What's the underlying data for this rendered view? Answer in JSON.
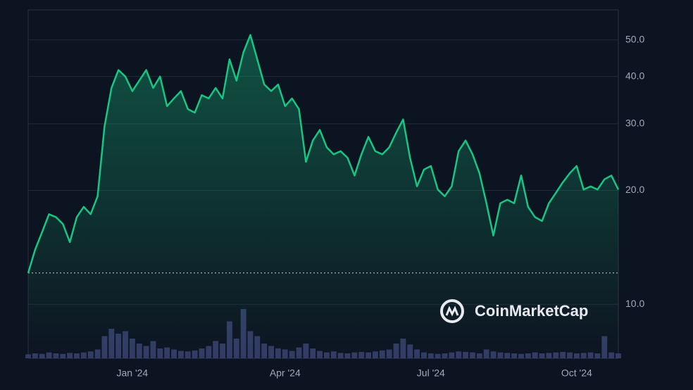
{
  "chart_data": {
    "type": "line",
    "categories": [
      null,
      null,
      null,
      null,
      null,
      null,
      null,
      null,
      null,
      null,
      null,
      null,
      null,
      null,
      null,
      "Jan '24",
      null,
      null,
      null,
      null,
      null,
      null,
      null,
      null,
      null,
      null,
      null,
      null,
      null,
      null,
      null,
      null,
      null,
      null,
      null,
      null,
      null,
      "Apr '24",
      null,
      null,
      null,
      null,
      null,
      null,
      null,
      null,
      null,
      null,
      null,
      null,
      null,
      null,
      null,
      null,
      null,
      null,
      null,
      null,
      "Jul '24",
      null,
      null,
      null,
      null,
      null,
      null,
      null,
      null,
      null,
      null,
      null,
      null,
      null,
      null,
      null,
      null,
      null,
      null,
      null,
      null,
      "Oct '24",
      null,
      null,
      null,
      null,
      null,
      null
    ],
    "values": [
      12.1,
      13.95,
      15.5,
      17.3,
      17.0,
      16.3,
      14.6,
      17.0,
      18.1,
      17.3,
      19.3,
      29.5,
      37.3,
      41.6,
      40,
      36.6,
      39,
      41.6,
      37.3,
      40,
      33.4,
      35,
      36.6,
      32.8,
      32.1,
      35.7,
      35,
      37.3,
      35,
      44.4,
      39,
      46.3,
      51.5,
      44.4,
      38.1,
      36.6,
      38.1,
      33.4,
      35,
      32.8,
      23.8,
      27.1,
      28.9,
      26,
      24.9,
      25.4,
      24.4,
      21.9,
      24.9,
      27.7,
      25.4,
      24.9,
      26,
      28.4,
      30.8,
      24.4,
      20.5,
      22.7,
      23.2,
      20.1,
      19.3,
      20.5,
      25.4,
      27.1,
      24.9,
      22.2,
      18.5,
      15.2,
      18.5,
      18.9,
      18.5,
      21.9,
      18.1,
      17,
      16.6,
      18.5,
      19.7,
      21,
      22.2,
      23.2,
      20.1,
      20.5,
      20.1,
      21.4,
      21.9,
      20.1
    ],
    "color": "#16c784",
    "volume": {
      "color": "#3b4270",
      "ylim": [
        0,
        100
      ],
      "values": [
        8,
        10,
        9,
        12,
        10,
        9,
        11,
        10,
        12,
        14,
        18,
        45,
        60,
        50,
        55,
        40,
        30,
        25,
        35,
        20,
        22,
        18,
        15,
        14,
        16,
        20,
        25,
        35,
        30,
        75,
        40,
        100,
        55,
        45,
        30,
        25,
        20,
        18,
        15,
        22,
        30,
        20,
        15,
        12,
        14,
        11,
        10,
        12,
        13,
        12,
        14,
        16,
        18,
        30,
        40,
        28,
        18,
        12,
        10,
        9,
        10,
        12,
        14,
        13,
        12,
        10,
        18,
        14,
        12,
        11,
        10,
        9,
        10,
        12,
        10,
        11,
        12,
        13,
        12,
        10,
        11,
        12,
        10,
        45,
        12,
        10
      ]
    },
    "ylim": [
      7.2,
      60
    ],
    "log_scale": true,
    "grid": true,
    "yticks": [
      {
        "value": 10,
        "label": "10.0"
      },
      {
        "value": 20,
        "label": "20.0"
      },
      {
        "value": 30,
        "label": "30.0"
      },
      {
        "value": 40,
        "label": "40.0"
      },
      {
        "value": 50,
        "label": "50.0"
      }
    ],
    "watermark": "CoinMarketCap"
  }
}
